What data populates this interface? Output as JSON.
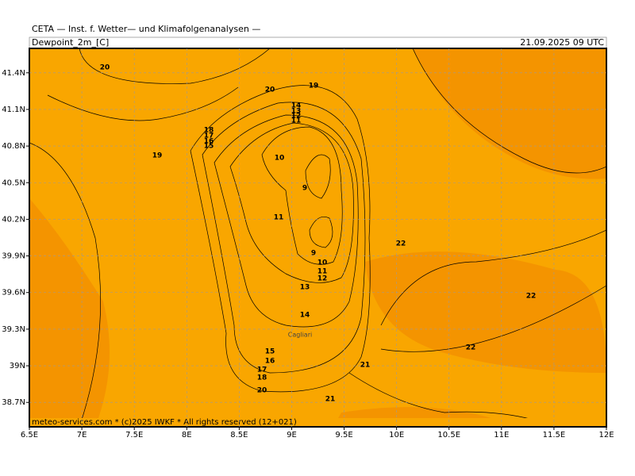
{
  "header": "CETA — Inst. f. Wetter— und Klimafolgenanalysen —",
  "title": "Dewpoint_2m_[C]",
  "timestamp": "21.09.2025 09 UTC",
  "footer": "meteo-services.com * (c)2025 IWKF * All rights reserved (12+021)",
  "map": {
    "lonlim": [
      6.5,
      12
    ],
    "latlim": [
      38.5,
      41.6
    ],
    "lon_ticks": [
      {
        "value": 6.5,
        "label": "6.5E"
      },
      {
        "value": 7,
        "label": "7E"
      },
      {
        "value": 7.5,
        "label": "7.5E"
      },
      {
        "value": 8,
        "label": "8E"
      },
      {
        "value": 8.5,
        "label": "8.5E"
      },
      {
        "value": 9,
        "label": "9E"
      },
      {
        "value": 9.5,
        "label": "9.5E"
      },
      {
        "value": 10,
        "label": "10E"
      },
      {
        "value": 10.5,
        "label": "10.5E"
      },
      {
        "value": 11,
        "label": "11E"
      },
      {
        "value": 11.5,
        "label": "11.5E"
      },
      {
        "value": 12,
        "label": "12E"
      }
    ],
    "lat_ticks": [
      {
        "value": 41.4,
        "label": "41.4N"
      },
      {
        "value": 41.1,
        "label": "41.1N"
      },
      {
        "value": 40.8,
        "label": "40.8N"
      },
      {
        "value": 40.5,
        "label": "40.5N"
      },
      {
        "value": 40.2,
        "label": "40.2N"
      },
      {
        "value": 39.9,
        "label": "39.9N"
      },
      {
        "value": 39.6,
        "label": "39.6N"
      },
      {
        "value": 39.3,
        "label": "39.3N"
      },
      {
        "value": 39,
        "label": "39N"
      },
      {
        "value": 38.7,
        "label": "38.7N"
      }
    ],
    "city": "Cagliari",
    "contour_labels": [
      20,
      20,
      19,
      14,
      13,
      12,
      11,
      18,
      17,
      16,
      15,
      19,
      10,
      9,
      11,
      22,
      9,
      10,
      11,
      12,
      13,
      22,
      14,
      22,
      15,
      16,
      21,
      17,
      18,
      20,
      21
    ]
  }
}
